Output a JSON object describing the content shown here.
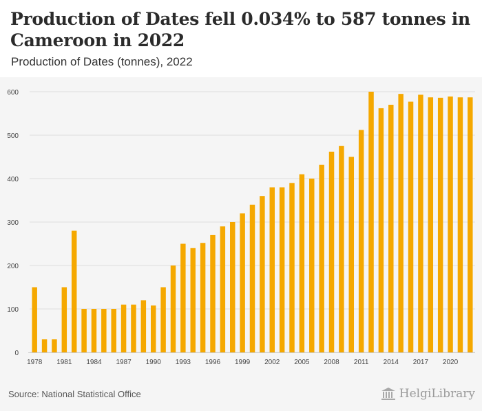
{
  "header": {
    "title": "Production of Dates fell 0.034% to 587 tonnes in Cameroon in 2022",
    "subtitle": "Production of Dates (tonnes), 2022"
  },
  "footer": {
    "source": "Source: National Statistical Office",
    "logo_text": "HelgiLibrary"
  },
  "colors": {
    "bar": "#f5a800",
    "grid": "#dddddd",
    "axis_text": "#444444"
  },
  "chart_data": {
    "type": "bar",
    "title": "Production of Dates (tonnes), 2022",
    "xlabel": "",
    "ylabel": "",
    "ylim": [
      0,
      600
    ],
    "yticks": [
      0,
      100,
      200,
      300,
      400,
      500,
      600
    ],
    "xtick_labels": [
      "1978",
      "1981",
      "1984",
      "1987",
      "1990",
      "1993",
      "1996",
      "1999",
      "2002",
      "2005",
      "2008",
      "2011",
      "2014",
      "2017",
      "2020"
    ],
    "grid": true,
    "categories": [
      "1978",
      "1979",
      "1980",
      "1981",
      "1982",
      "1983",
      "1984",
      "1985",
      "1986",
      "1987",
      "1988",
      "1989",
      "1990",
      "1991",
      "1992",
      "1993",
      "1994",
      "1995",
      "1996",
      "1997",
      "1998",
      "1999",
      "2000",
      "2001",
      "2002",
      "2003",
      "2004",
      "2005",
      "2006",
      "2007",
      "2008",
      "2009",
      "2010",
      "2011",
      "2012",
      "2013",
      "2014",
      "2015",
      "2016",
      "2017",
      "2018",
      "2019",
      "2020",
      "2021",
      "2022"
    ],
    "values": [
      150,
      30,
      30,
      150,
      280,
      100,
      100,
      100,
      100,
      110,
      110,
      120,
      108,
      150,
      200,
      250,
      240,
      252,
      270,
      290,
      300,
      320,
      340,
      360,
      380,
      380,
      390,
      410,
      400,
      432,
      462,
      475,
      450,
      512,
      600,
      562,
      570,
      595,
      577,
      593,
      587,
      586,
      589,
      587,
      587
    ]
  }
}
